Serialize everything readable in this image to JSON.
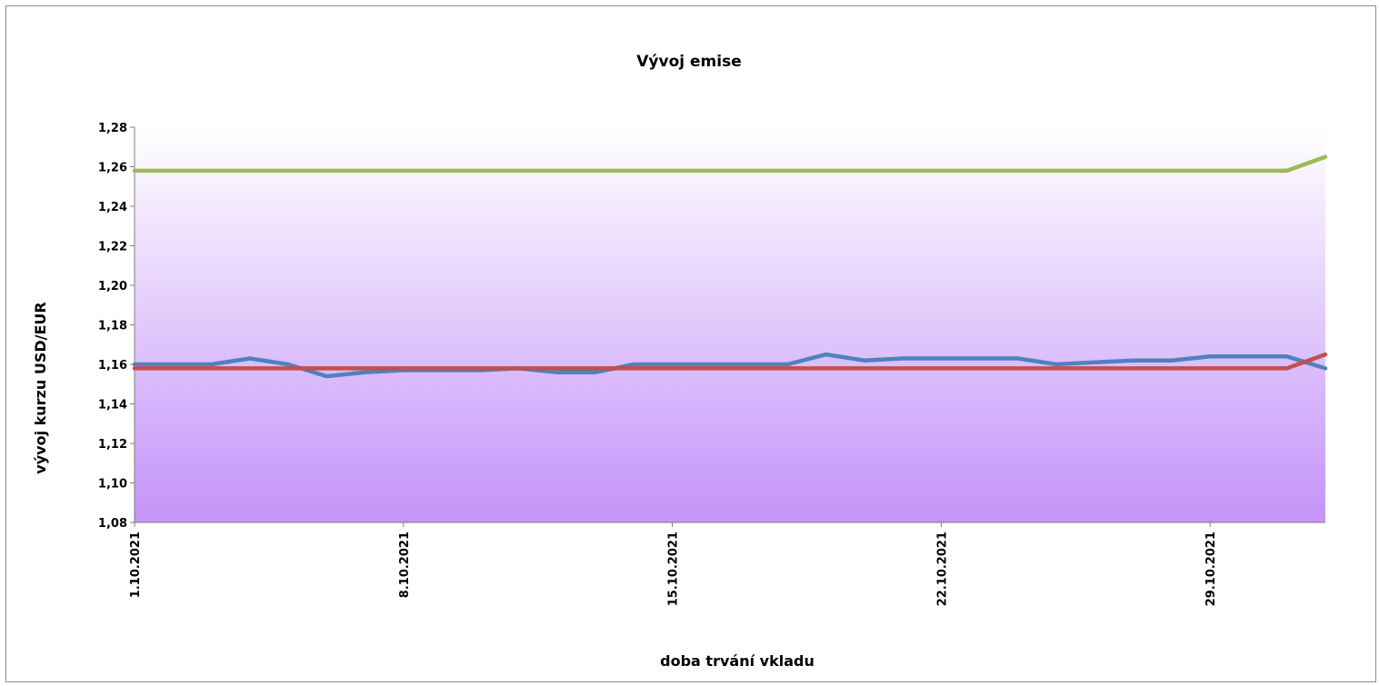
{
  "chart_data": {
    "type": "line",
    "title": "Vývoj emise",
    "xlabel": "doba trvání vkladu",
    "ylabel": "vývoj kurzu USD/EUR",
    "ylim": [
      1.08,
      1.28
    ],
    "y_ticks": [
      "1,08",
      "1,10",
      "1,12",
      "1,14",
      "1,16",
      "1,18",
      "1,20",
      "1,22",
      "1,24",
      "1,26",
      "1,28"
    ],
    "x_ticks": [
      {
        "day": 1,
        "label": "1.10.2021"
      },
      {
        "day": 8,
        "label": "8.10.2021"
      },
      {
        "day": 15,
        "label": "15.10.2021"
      },
      {
        "day": 22,
        "label": "22.10.2021"
      },
      {
        "day": 29,
        "label": "29.10.2021"
      }
    ],
    "x": [
      "1.10.2021",
      "2.10.2021",
      "3.10.2021",
      "4.10.2021",
      "5.10.2021",
      "6.10.2021",
      "7.10.2021",
      "8.10.2021",
      "9.10.2021",
      "10.10.2021",
      "11.10.2021",
      "12.10.2021",
      "13.10.2021",
      "14.10.2021",
      "15.10.2021",
      "16.10.2021",
      "17.10.2021",
      "18.10.2021",
      "19.10.2021",
      "20.10.2021",
      "21.10.2021",
      "22.10.2021",
      "23.10.2021",
      "24.10.2021",
      "25.10.2021",
      "26.10.2021",
      "27.10.2021",
      "28.10.2021",
      "29.10.2021",
      "30.10.2021",
      "31.10.2021",
      "1.11.2021"
    ],
    "grid": false,
    "legend": "none",
    "series": [
      {
        "color": "#4f81bd",
        "values": [
          1.16,
          1.16,
          1.16,
          1.163,
          1.16,
          1.154,
          1.156,
          1.157,
          1.157,
          1.157,
          1.158,
          1.156,
          1.156,
          1.16,
          1.16,
          1.16,
          1.16,
          1.16,
          1.165,
          1.162,
          1.163,
          1.163,
          1.163,
          1.163,
          1.16,
          1.161,
          1.162,
          1.162,
          1.164,
          1.164,
          1.164,
          1.158
        ]
      },
      {
        "color": "#c0504d",
        "values": [
          1.158,
          1.158,
          1.158,
          1.158,
          1.158,
          1.158,
          1.158,
          1.158,
          1.158,
          1.158,
          1.158,
          1.158,
          1.158,
          1.158,
          1.158,
          1.158,
          1.158,
          1.158,
          1.158,
          1.158,
          1.158,
          1.158,
          1.158,
          1.158,
          1.158,
          1.158,
          1.158,
          1.158,
          1.158,
          1.158,
          1.158,
          1.165
        ]
      },
      {
        "color": "#9bbb59",
        "values": [
          1.258,
          1.258,
          1.258,
          1.258,
          1.258,
          1.258,
          1.258,
          1.258,
          1.258,
          1.258,
          1.258,
          1.258,
          1.258,
          1.258,
          1.258,
          1.258,
          1.258,
          1.258,
          1.258,
          1.258,
          1.258,
          1.258,
          1.258,
          1.258,
          1.258,
          1.258,
          1.258,
          1.258,
          1.258,
          1.258,
          1.258,
          1.265
        ]
      }
    ],
    "colors": {
      "plot_gradient_top": "#ffffff",
      "plot_gradient_bottom": "#c493f8",
      "axis": "#7f7f7f"
    }
  }
}
